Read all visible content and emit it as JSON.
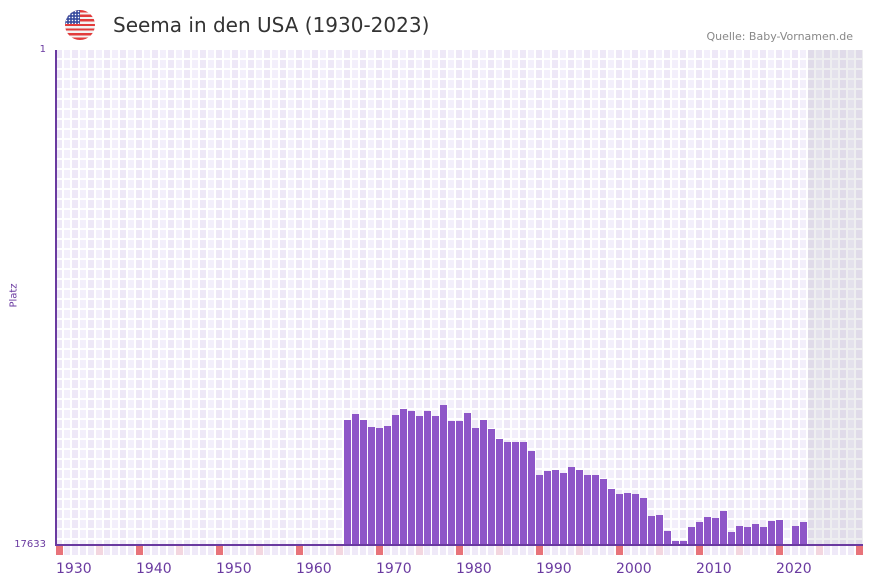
{
  "header": {
    "title": "Seema in den USA (1930-2023)",
    "source": "Quelle: Baby-Vornamen.de",
    "flag_icon": "us-flag-icon"
  },
  "colors": {
    "bar": "#8e56c8",
    "axis": "#6a3aa0",
    "marker_strong": "#e8737a",
    "marker_light": "#f3d6df"
  },
  "chart_data": {
    "type": "bar",
    "title": "Seema in den USA (1930-2023)",
    "xlabel": "",
    "ylabel": "Platz",
    "ylim": [
      1,
      17633
    ],
    "yticks": [
      "1",
      "17633"
    ],
    "xlim": [
      1930,
      2030
    ],
    "xticks": [
      "1930",
      "1940",
      "1950",
      "1960",
      "1970",
      "1980",
      "1990",
      "2000",
      "2010",
      "2020"
    ],
    "years": [
      1966,
      1967,
      1968,
      1969,
      1970,
      1971,
      1972,
      1973,
      1974,
      1975,
      1976,
      1977,
      1978,
      1979,
      1980,
      1981,
      1982,
      1983,
      1984,
      1985,
      1986,
      1987,
      1988,
      1989,
      1990,
      1991,
      1992,
      1993,
      1994,
      1995,
      1996,
      1997,
      1998,
      1999,
      2000,
      2001,
      2002,
      2003,
      2004,
      2005,
      2006,
      2007,
      2008,
      2009,
      2010,
      2011,
      2012,
      2013,
      2014,
      2015,
      2016,
      2017,
      2018,
      2019,
      2020,
      2021,
      2022,
      2023
    ],
    "ranks": [
      13180,
      12967,
      13180,
      13429,
      13465,
      13394,
      13002,
      12788,
      12860,
      13038,
      12860,
      13038,
      12646,
      13216,
      13216,
      12931,
      13465,
      13180,
      13501,
      13857,
      13964,
      13964,
      13964,
      14284,
      15140,
      14997,
      14961,
      15068,
      14854,
      14961,
      15140,
      15140,
      15282,
      15638,
      15816,
      15781,
      15816,
      15959,
      16600,
      16564,
      17134,
      17490,
      17490,
      16992,
      16814,
      16636,
      16672,
      16422,
      17170,
      16956,
      16992,
      16885,
      16992,
      16778,
      16742,
      null,
      16956,
      16814
    ]
  }
}
